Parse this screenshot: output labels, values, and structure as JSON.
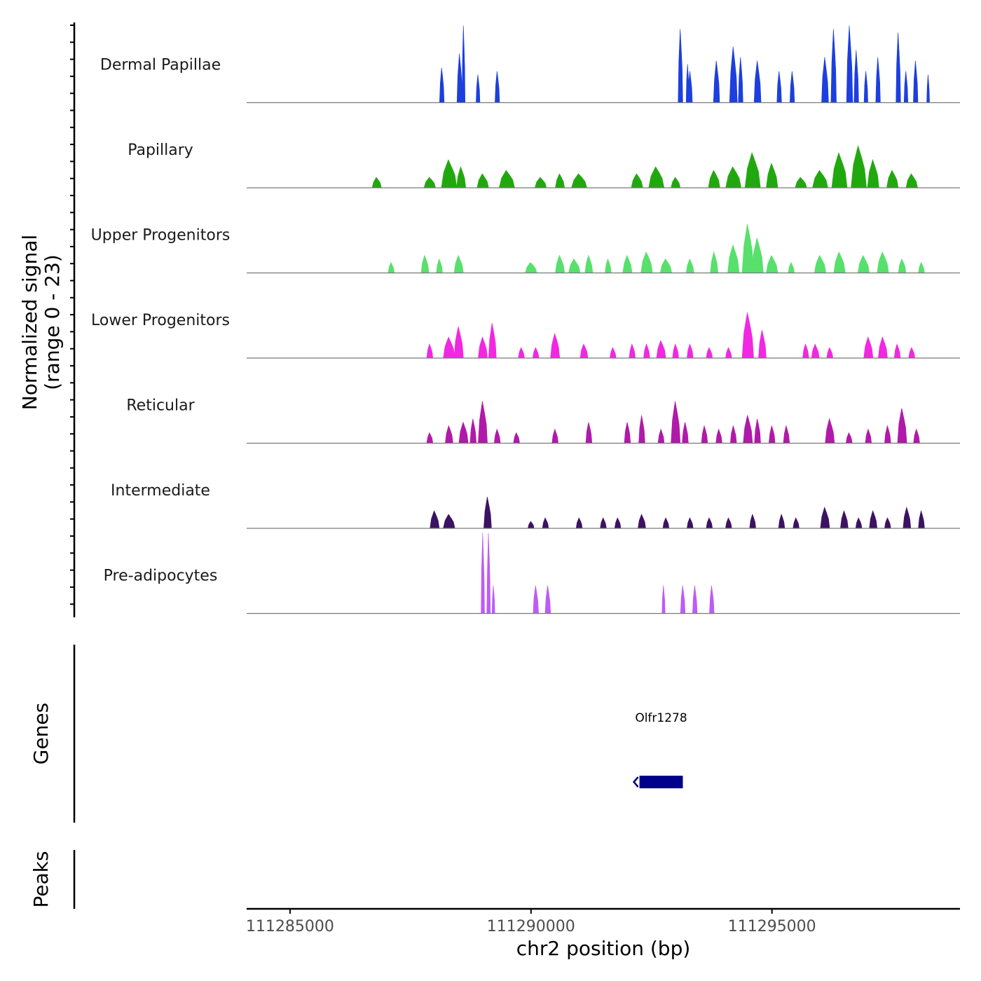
{
  "chart_data": {
    "type": "area",
    "title": "",
    "xlabel": "chr2 position (bp)",
    "ylabel_line1": "Normalized signal",
    "ylabel_line2": "(range 0 - 23)",
    "xlim": [
      111284100,
      111298900
    ],
    "ylim": [
      0,
      23
    ],
    "x_ticks": [
      111285000,
      111290000,
      111295000
    ],
    "x_tick_labels": [
      "111285000",
      "111290000",
      "111295000"
    ],
    "tracks": [
      {
        "name": "Dermal Papillae",
        "color": "#1c3fdd",
        "peaks": [
          [
            111288150,
            60,
            10
          ],
          [
            111288520,
            70,
            14
          ],
          [
            111288600,
            40,
            22
          ],
          [
            111288900,
            50,
            8
          ],
          [
            111289300,
            60,
            9
          ],
          [
            111293100,
            60,
            21
          ],
          [
            111293250,
            40,
            11
          ],
          [
            111293300,
            60,
            9
          ],
          [
            111293850,
            80,
            12
          ],
          [
            111294200,
            100,
            16
          ],
          [
            111294350,
            60,
            13
          ],
          [
            111294700,
            90,
            12
          ],
          [
            111295150,
            60,
            9
          ],
          [
            111295420,
            60,
            9
          ],
          [
            111296100,
            90,
            13
          ],
          [
            111296280,
            70,
            21
          ],
          [
            111296610,
            80,
            22
          ],
          [
            111296750,
            60,
            15
          ],
          [
            111296950,
            50,
            9
          ],
          [
            111297200,
            60,
            13
          ],
          [
            111297620,
            60,
            20
          ],
          [
            111297780,
            50,
            9
          ],
          [
            111297980,
            60,
            12
          ],
          [
            111298240,
            30,
            8
          ]
        ]
      },
      {
        "name": "Papillary",
        "color": "#22a80f",
        "peaks": [
          [
            111286800,
            120,
            3
          ],
          [
            111287900,
            150,
            3
          ],
          [
            111288300,
            200,
            8
          ],
          [
            111288550,
            120,
            6
          ],
          [
            111289000,
            150,
            4
          ],
          [
            111289500,
            200,
            5
          ],
          [
            111290200,
            150,
            3
          ],
          [
            111290600,
            120,
            4
          ],
          [
            111291000,
            200,
            4
          ],
          [
            111292200,
            150,
            4
          ],
          [
            111292600,
            200,
            6
          ],
          [
            111293000,
            120,
            3
          ],
          [
            111293800,
            150,
            5
          ],
          [
            111294200,
            200,
            6
          ],
          [
            111294600,
            200,
            10
          ],
          [
            111295000,
            150,
            7
          ],
          [
            111295600,
            150,
            3
          ],
          [
            111296000,
            200,
            5
          ],
          [
            111296400,
            200,
            10
          ],
          [
            111296800,
            200,
            12
          ],
          [
            111297100,
            150,
            8
          ],
          [
            111297500,
            150,
            5
          ],
          [
            111297900,
            150,
            4
          ]
        ]
      },
      {
        "name": "Upper Progenitors",
        "color": "#58e06c",
        "peaks": [
          [
            111287100,
            80,
            3
          ],
          [
            111287800,
            100,
            5
          ],
          [
            111288100,
            80,
            4
          ],
          [
            111288500,
            120,
            5
          ],
          [
            111290000,
            150,
            3
          ],
          [
            111290600,
            120,
            5
          ],
          [
            111290900,
            150,
            4
          ],
          [
            111291200,
            100,
            5
          ],
          [
            111291600,
            80,
            4
          ],
          [
            111292000,
            120,
            5
          ],
          [
            111292400,
            150,
            6
          ],
          [
            111292800,
            150,
            4
          ],
          [
            111293300,
            100,
            4
          ],
          [
            111293800,
            100,
            6
          ],
          [
            111294200,
            150,
            8
          ],
          [
            111294500,
            150,
            14
          ],
          [
            111294700,
            150,
            10
          ],
          [
            111295000,
            150,
            5
          ],
          [
            111295400,
            80,
            3
          ],
          [
            111296000,
            150,
            5
          ],
          [
            111296400,
            150,
            6
          ],
          [
            111296900,
            150,
            5
          ],
          [
            111297300,
            150,
            6
          ],
          [
            111297700,
            100,
            4
          ],
          [
            111298100,
            80,
            3
          ]
        ]
      },
      {
        "name": "Lower Progenitors",
        "color": "#f227e2",
        "peaks": [
          [
            111287900,
            80,
            4
          ],
          [
            111288300,
            150,
            6
          ],
          [
            111288500,
            120,
            9
          ],
          [
            111289000,
            120,
            6
          ],
          [
            111289200,
            100,
            10
          ],
          [
            111289800,
            80,
            3
          ],
          [
            111290100,
            80,
            3
          ],
          [
            111290500,
            120,
            7
          ],
          [
            111291100,
            100,
            4
          ],
          [
            111291700,
            80,
            3
          ],
          [
            111292100,
            80,
            4
          ],
          [
            111292400,
            80,
            4
          ],
          [
            111292700,
            120,
            5
          ],
          [
            111293000,
            80,
            4
          ],
          [
            111293300,
            80,
            4
          ],
          [
            111293700,
            80,
            3
          ],
          [
            111294100,
            80,
            3
          ],
          [
            111294500,
            150,
            13
          ],
          [
            111294800,
            100,
            8
          ],
          [
            111295700,
            80,
            4
          ],
          [
            111295900,
            100,
            4
          ],
          [
            111296200,
            80,
            3
          ],
          [
            111297000,
            120,
            6
          ],
          [
            111297300,
            120,
            6
          ],
          [
            111297600,
            80,
            4
          ],
          [
            111297900,
            80,
            3
          ]
        ]
      },
      {
        "name": "Reticular",
        "color": "#b01aa8",
        "peaks": [
          [
            111287900,
            80,
            3
          ],
          [
            111288300,
            100,
            5
          ],
          [
            111288600,
            120,
            6
          ],
          [
            111288800,
            80,
            7
          ],
          [
            111289000,
            120,
            12
          ],
          [
            111289300,
            80,
            4
          ],
          [
            111289700,
            80,
            3
          ],
          [
            111290500,
            80,
            4
          ],
          [
            111291200,
            80,
            6
          ],
          [
            111292000,
            80,
            6
          ],
          [
            111292300,
            80,
            8
          ],
          [
            111292700,
            80,
            4
          ],
          [
            111293000,
            120,
            12
          ],
          [
            111293200,
            80,
            6
          ],
          [
            111293600,
            80,
            5
          ],
          [
            111293900,
            80,
            4
          ],
          [
            111294200,
            80,
            5
          ],
          [
            111294500,
            120,
            8
          ],
          [
            111294700,
            80,
            7
          ],
          [
            111295000,
            80,
            5
          ],
          [
            111295300,
            80,
            5
          ],
          [
            111296200,
            120,
            7
          ],
          [
            111296600,
            80,
            3
          ],
          [
            111297000,
            80,
            4
          ],
          [
            111297400,
            80,
            5
          ],
          [
            111297700,
            120,
            10
          ],
          [
            111298000,
            80,
            4
          ]
        ]
      },
      {
        "name": "Intermediate",
        "color": "#3c1263",
        "peaks": [
          [
            111288000,
            120,
            5
          ],
          [
            111288300,
            150,
            4
          ],
          [
            111289100,
            100,
            9
          ],
          [
            111290000,
            80,
            2
          ],
          [
            111290300,
            80,
            3
          ],
          [
            111291000,
            80,
            3
          ],
          [
            111291500,
            80,
            3
          ],
          [
            111291800,
            80,
            3
          ],
          [
            111292300,
            100,
            4
          ],
          [
            111292800,
            80,
            3
          ],
          [
            111293300,
            80,
            3
          ],
          [
            111293700,
            80,
            3
          ],
          [
            111294100,
            80,
            3
          ],
          [
            111294600,
            80,
            4
          ],
          [
            111295200,
            80,
            4
          ],
          [
            111295500,
            80,
            3
          ],
          [
            111296100,
            120,
            6
          ],
          [
            111296500,
            100,
            5
          ],
          [
            111296800,
            80,
            3
          ],
          [
            111297100,
            100,
            5
          ],
          [
            111297400,
            80,
            3
          ],
          [
            111297800,
            100,
            6
          ],
          [
            111298100,
            80,
            5
          ]
        ]
      },
      {
        "name": "Pre-adipocytes",
        "color": "#bd5cf5",
        "peaks": [
          [
            111289000,
            45,
            23
          ],
          [
            111289120,
            45,
            23
          ],
          [
            111289220,
            20,
            8
          ],
          [
            111290100,
            70,
            8
          ],
          [
            111290350,
            70,
            8
          ],
          [
            111292750,
            40,
            8
          ],
          [
            111293150,
            60,
            8
          ],
          [
            111293400,
            60,
            8
          ],
          [
            111293750,
            60,
            8
          ]
        ]
      }
    ],
    "gene_panel_label": "Genes",
    "genes": [
      {
        "name": "Olfr1278",
        "start": 111292250,
        "end": 111293150,
        "strand": "-",
        "color": "#00008b"
      }
    ],
    "peaks_panel_label": "Peaks",
    "peaks_regions": []
  }
}
